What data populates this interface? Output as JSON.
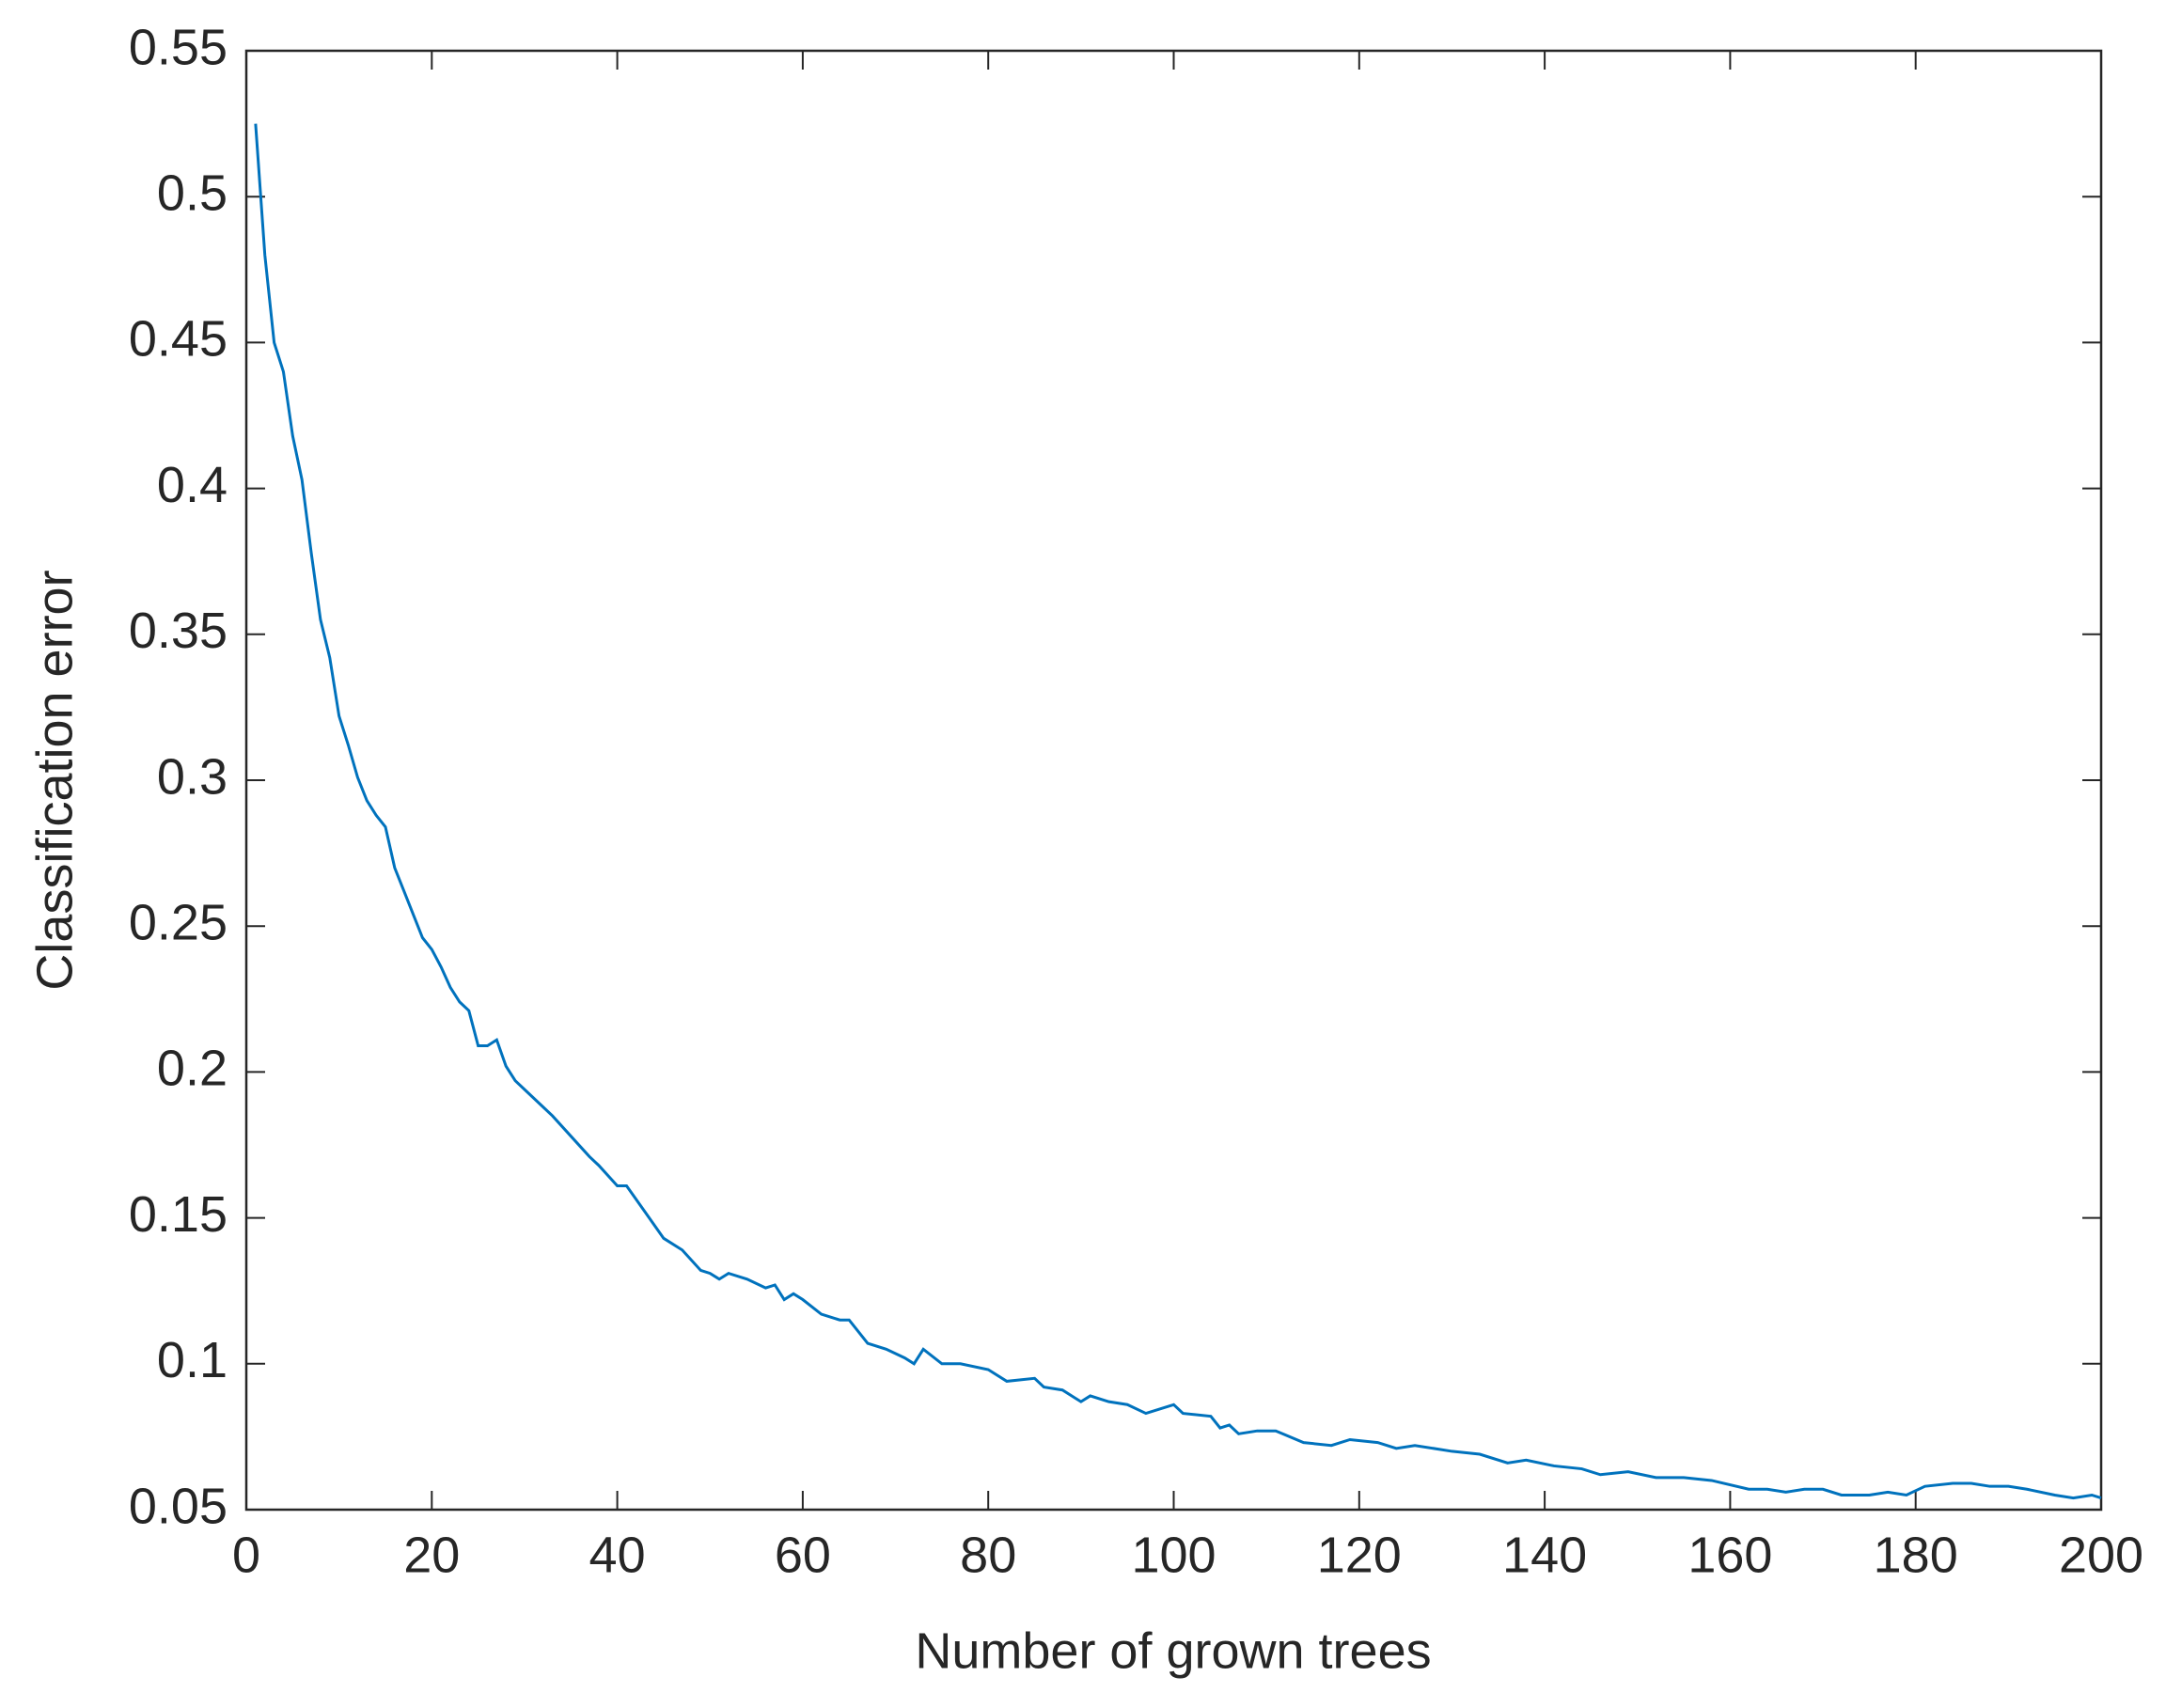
{
  "chart_data": {
    "type": "line",
    "x_label": "Number of grown trees",
    "y_label": "Classification error",
    "xlim": [
      0,
      200
    ],
    "xticks": [
      0,
      20,
      40,
      60,
      80,
      100,
      120,
      140,
      160,
      180,
      200
    ],
    "ylim": [
      0.05,
      0.55
    ],
    "yticks": [
      0.05,
      0.1,
      0.15,
      0.2,
      0.25,
      0.3,
      0.35,
      0.4,
      0.45,
      0.5,
      0.55
    ],
    "grid": false,
    "series": [
      {
        "color": "#0072bd",
        "x": [
          1,
          2,
          3,
          4,
          5,
          6,
          7,
          8,
          9,
          10,
          11,
          12,
          13,
          14,
          15,
          16,
          17,
          18,
          19,
          20,
          21,
          22,
          23,
          24,
          25,
          26,
          27,
          28,
          29,
          30,
          32,
          33,
          35,
          37,
          38,
          40,
          41,
          43,
          45,
          47,
          49,
          50,
          51,
          52,
          54,
          56,
          57,
          58,
          59,
          60,
          62,
          64,
          65,
          67,
          69,
          71,
          72,
          73,
          75,
          77,
          80,
          82,
          85,
          86,
          88,
          90,
          91,
          93,
          95,
          97,
          100,
          101,
          104,
          105,
          106,
          107,
          109,
          111,
          114,
          117,
          119,
          122,
          124,
          126,
          130,
          133,
          136,
          138,
          141,
          144,
          146,
          149,
          152,
          155,
          158,
          162,
          164,
          166,
          168,
          170,
          172,
          175,
          177,
          179,
          181,
          184,
          186,
          188,
          190,
          192,
          195,
          197,
          199,
          200
        ],
        "values": [
          0.525,
          0.48,
          0.45,
          0.44,
          0.418,
          0.403,
          0.378,
          0.355,
          0.342,
          0.322,
          0.312,
          0.301,
          0.293,
          0.288,
          0.284,
          0.27,
          0.262,
          0.254,
          0.246,
          0.242,
          0.236,
          0.229,
          0.224,
          0.221,
          0.209,
          0.209,
          0.211,
          0.202,
          0.197,
          0.194,
          0.188,
          0.185,
          0.178,
          0.171,
          0.168,
          0.161,
          0.161,
          0.152,
          0.143,
          0.139,
          0.132,
          0.131,
          0.129,
          0.131,
          0.129,
          0.126,
          0.127,
          0.122,
          0.124,
          0.122,
          0.117,
          0.115,
          0.115,
          0.107,
          0.105,
          0.102,
          0.1,
          0.105,
          0.1,
          0.1,
          0.098,
          0.094,
          0.095,
          0.092,
          0.091,
          0.087,
          0.089,
          0.087,
          0.086,
          0.083,
          0.086,
          0.083,
          0.082,
          0.078,
          0.079,
          0.076,
          0.077,
          0.077,
          0.073,
          0.072,
          0.074,
          0.073,
          0.071,
          0.072,
          0.07,
          0.069,
          0.066,
          0.067,
          0.065,
          0.064,
          0.062,
          0.063,
          0.061,
          0.061,
          0.06,
          0.057,
          0.057,
          0.056,
          0.057,
          0.057,
          0.055,
          0.055,
          0.056,
          0.055,
          0.058,
          0.059,
          0.059,
          0.058,
          0.058,
          0.057,
          0.055,
          0.054,
          0.055,
          0.054
        ]
      }
    ]
  }
}
